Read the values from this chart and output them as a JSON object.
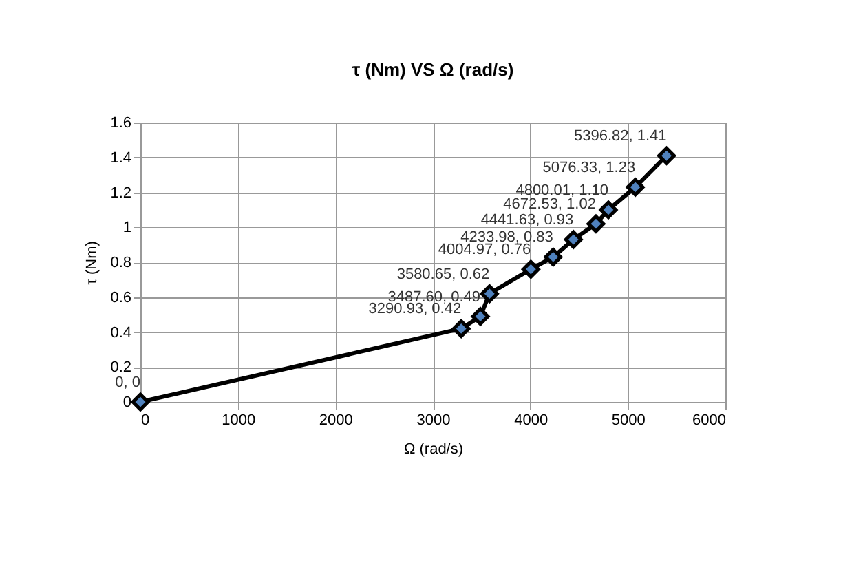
{
  "chart_data": {
    "type": "line",
    "title": "τ (Nm) VS Ω (rad/s)",
    "xlabel": "Ω (rad/s)",
    "ylabel": "τ (Nm)",
    "x": [
      0,
      3290.93,
      3487.6,
      3580.65,
      4004.97,
      4233.98,
      4441.63,
      4672.53,
      4800.01,
      5076.33,
      5396.82
    ],
    "series": [
      {
        "color": "#4f81bd",
        "values": [
          0,
          0.42,
          0.49,
          0.62,
          0.76,
          0.83,
          0.93,
          1.02,
          1.1,
          1.23,
          1.41
        ],
        "value_labels": [
          "0, 0",
          "3290.93, 0.42",
          "3487.60, 0.49",
          "3580.65, 0.62",
          "4004.97, 0.76",
          "4233.98, 0.83",
          "4441.63, 0.93",
          "4672.53, 1.02",
          "4800.01, 1.10",
          "5076.33, 1.23",
          "5396.82, 1.41"
        ]
      }
    ],
    "xlim": [
      0,
      6000
    ],
    "xticks": [
      0,
      1000,
      2000,
      3000,
      4000,
      5000,
      6000
    ],
    "ylim": [
      0,
      1.6
    ],
    "yticks": [
      0,
      0.2,
      0.4,
      0.6,
      0.8,
      1,
      1.2,
      1.4,
      1.6
    ],
    "grid": true,
    "marker": "diamond",
    "line_style": "solid"
  }
}
